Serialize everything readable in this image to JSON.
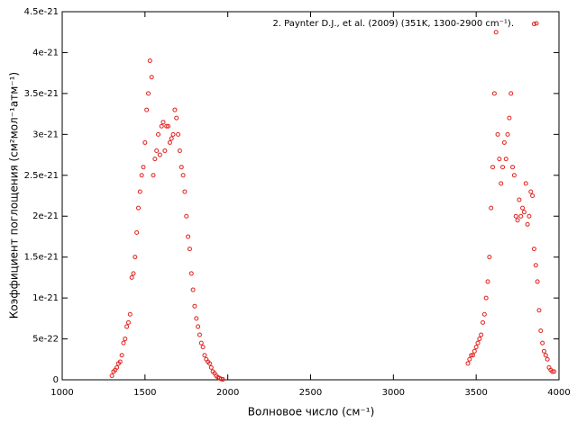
{
  "chart_data": {
    "type": "scatter",
    "xlabel": "Волновое число (см⁻¹)",
    "ylabel": "Коэффициент поглощения (см²мол⁻¹атм⁻¹)",
    "xlim": [
      1000,
      4000
    ],
    "xticks": [
      1000,
      1500,
      2000,
      2500,
      3000,
      3500,
      4000
    ],
    "ylim": [
      0,
      4.5e-21
    ],
    "yticks": [
      0,
      5e-22,
      1e-21,
      1.5e-21,
      2e-21,
      2.5e-21,
      3e-21,
      3.5e-21,
      4e-21,
      4.5e-21
    ],
    "legend": "top right",
    "x": [
      1300,
      1310,
      1320,
      1330,
      1340,
      1350,
      1360,
      1370,
      1380,
      1390,
      1400,
      1410,
      1420,
      1430,
      1440,
      1450,
      1460,
      1470,
      1480,
      1490,
      1500,
      1510,
      1520,
      1530,
      1540,
      1550,
      1560,
      1570,
      1580,
      1590,
      1600,
      1610,
      1620,
      1630,
      1640,
      1650,
      1660,
      1670,
      1680,
      1690,
      1700,
      1710,
      1720,
      1730,
      1740,
      1750,
      1760,
      1770,
      1780,
      1790,
      1800,
      1810,
      1820,
      1830,
      1840,
      1850,
      1860,
      1870,
      1880,
      1890,
      1900,
      1910,
      1920,
      1930,
      1940,
      1950,
      1960,
      1970,
      3450,
      3460,
      3470,
      3480,
      3490,
      3500,
      3510,
      3520,
      3530,
      3540,
      3550,
      3560,
      3570,
      3580,
      3590,
      3600,
      3610,
      3620,
      3630,
      3640,
      3650,
      3660,
      3670,
      3680,
      3690,
      3700,
      3710,
      3720,
      3730,
      3740,
      3750,
      3760,
      3770,
      3780,
      3790,
      3800,
      3810,
      3820,
      3830,
      3840,
      3850,
      3860,
      3870,
      3880,
      3890,
      3900,
      3910,
      3920,
      3930,
      3940,
      3950,
      3960,
      3970,
      3850
    ],
    "series": [
      {
        "name": "2. Paynter D.J., et al. (2009) (351K, 1300-2900 cm⁻¹).",
        "color": "#e0201c",
        "values": [
          5e-23,
          1e-22,
          1.2e-22,
          1.5e-22,
          2e-22,
          2.2e-22,
          3e-22,
          4.5e-22,
          5e-22,
          6.5e-22,
          7e-22,
          8e-22,
          1.25e-21,
          1.3e-21,
          1.5e-21,
          1.8e-21,
          2.1e-21,
          2.3e-21,
          2.5e-21,
          2.6e-21,
          2.9e-21,
          3.3e-21,
          3.5e-21,
          3.9e-21,
          3.7e-21,
          2.5e-21,
          2.7e-21,
          2.8e-21,
          3e-21,
          2.75e-21,
          3.1e-21,
          3.15e-21,
          2.8e-21,
          3.1e-21,
          3.1e-21,
          2.9e-21,
          2.95e-21,
          3e-21,
          3.3e-21,
          3.2e-21,
          3e-21,
          2.8e-21,
          2.6e-21,
          2.5e-21,
          2.3e-21,
          2e-21,
          1.75e-21,
          1.6e-21,
          1.3e-21,
          1.1e-21,
          9e-22,
          7.5e-22,
          6.5e-22,
          5.5e-22,
          4.5e-22,
          4e-22,
          3e-22,
          2.5e-22,
          2.2e-22,
          2e-22,
          1.5e-22,
          1e-22,
          8e-23,
          5e-23,
          3e-23,
          2e-23,
          1e-23,
          5e-24,
          2e-22,
          2.5e-22,
          3e-22,
          3e-22,
          3.5e-22,
          4e-22,
          4.5e-22,
          5e-22,
          5.5e-22,
          7e-22,
          8e-22,
          1e-21,
          1.2e-21,
          1.5e-21,
          2.1e-21,
          2.6e-21,
          3.5e-21,
          4.25e-21,
          3e-21,
          2.7e-21,
          2.4e-21,
          2.6e-21,
          2.9e-21,
          2.7e-21,
          3e-21,
          3.2e-21,
          3.5e-21,
          2.6e-21,
          2.5e-21,
          2e-21,
          1.95e-21,
          2.2e-21,
          2e-21,
          2.1e-21,
          2.05e-21,
          2.4e-21,
          1.9e-21,
          2e-21,
          2.3e-21,
          2.25e-21,
          1.6e-21,
          1.4e-21,
          1.2e-21,
          8.5e-22,
          6e-22,
          4.5e-22,
          3.5e-22,
          3e-22,
          2.5e-22,
          1.5e-22,
          1.2e-22,
          1e-22,
          1e-22,
          4.35e-21
        ]
      }
    ]
  }
}
